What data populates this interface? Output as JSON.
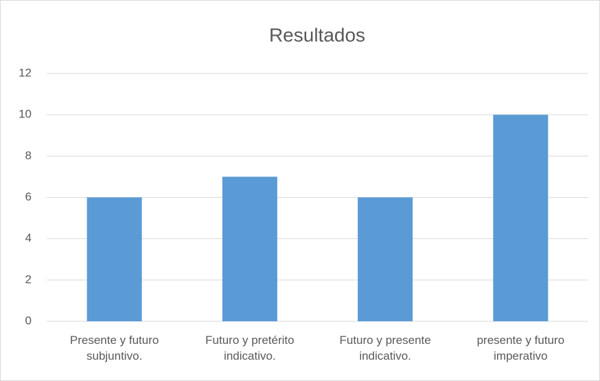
{
  "chart_data": {
    "type": "bar",
    "title": "Resultados",
    "categories": [
      "Presente y futuro subjuntivo.",
      "Futuro y pretérito indicativo.",
      "Futuro y  presente indicativo.",
      "presente y futuro imperativo"
    ],
    "values": [
      6,
      7,
      6,
      10
    ],
    "color": "#5b9bd5",
    "ylim": [
      0,
      12
    ],
    "yticks": [
      0,
      2,
      4,
      6,
      8,
      10,
      12
    ],
    "grid": true
  }
}
